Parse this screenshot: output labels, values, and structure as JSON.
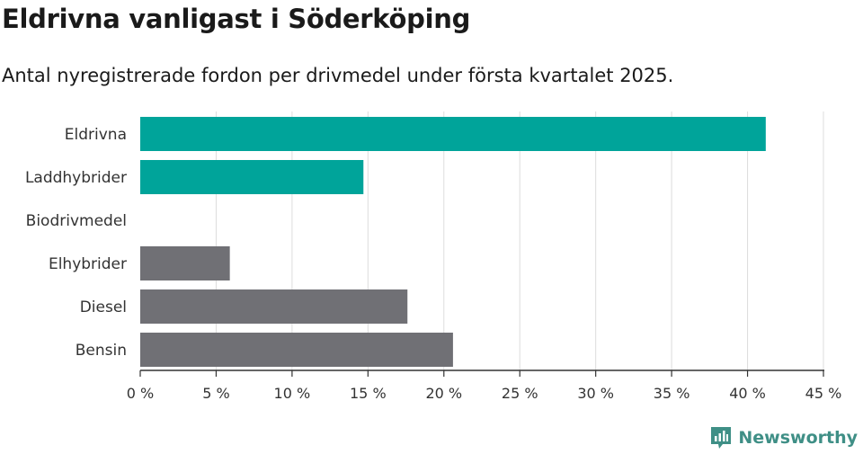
{
  "header": {
    "title": "Eldrivna vanligast i Söderköping",
    "subtitle": "Antal nyregistrerade fordon per drivmedel under första kvartalet 2025."
  },
  "brand": {
    "name": "Newsworthy",
    "icon": "newsworthy-logo-icon"
  },
  "colors": {
    "highlight": "#00a49a",
    "default": "#707075",
    "grid": "#dcdcdc",
    "axis": "#333333"
  },
  "chart_data": {
    "type": "bar",
    "orientation": "horizontal",
    "categories": [
      "Eldrivna",
      "Laddhybrider",
      "Biodrivmedel",
      "Elhybrider",
      "Diesel",
      "Bensin"
    ],
    "values": [
      41.2,
      14.7,
      0,
      5.9,
      17.6,
      20.6
    ],
    "highlighted": [
      true,
      true,
      false,
      false,
      false,
      false
    ],
    "xlim": [
      0,
      45
    ],
    "xticks": [
      0,
      5,
      10,
      15,
      20,
      25,
      30,
      35,
      40,
      45
    ],
    "xtick_labels": [
      "0 %",
      "5 %",
      "10 %",
      "15 %",
      "20 %",
      "25 %",
      "30 %",
      "35 %",
      "40 %",
      "45 %"
    ],
    "grid": true,
    "legend": "none"
  }
}
